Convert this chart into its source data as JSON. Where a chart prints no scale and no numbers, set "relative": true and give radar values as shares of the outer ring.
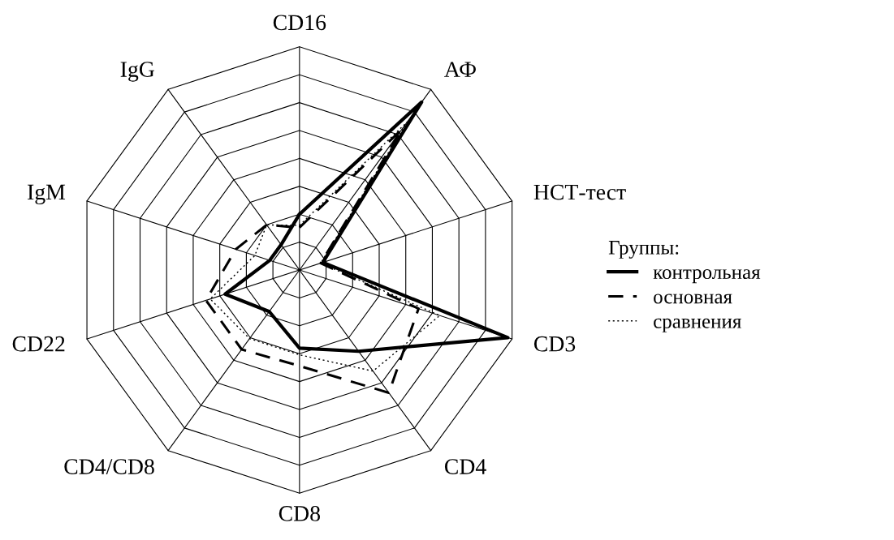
{
  "chart_data": {
    "type": "radar",
    "relative": true,
    "grid": true,
    "legend": "right",
    "legend_title": "Группы:",
    "categories": [
      "CD16",
      "АФ",
      "НСТ-тест",
      "CD3",
      "CD4",
      "CD8",
      "CD4/CD8",
      "CD22",
      "IgM",
      "IgG"
    ],
    "series": [
      {
        "name": "контрольная",
        "color": "#000000",
        "line_style": "solid",
        "values": [
          0.25,
          0.93,
          0.11,
          0.98,
          0.45,
          0.35,
          0.23,
          0.35,
          0.14,
          0.14
        ]
      },
      {
        "name": "основная",
        "color": "#000000",
        "line_style": "dashed",
        "values": [
          0.19,
          0.78,
          0.1,
          0.56,
          0.68,
          0.43,
          0.44,
          0.44,
          0.3,
          0.25
        ]
      },
      {
        "name": "сравнения",
        "color": "#000000",
        "line_style": "dotted",
        "values": [
          0.2,
          0.82,
          0.1,
          0.66,
          0.56,
          0.38,
          0.38,
          0.42,
          0.21,
          0.25
        ]
      }
    ]
  }
}
